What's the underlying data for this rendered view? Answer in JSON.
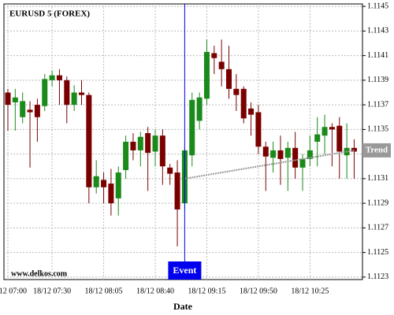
{
  "chart_data": {
    "type": "candlestick",
    "title": "EURUSD 5 (FOREX)",
    "x_label": "Date",
    "watermark": "www.delkos.com",
    "categories": [
      "18/12 07:00",
      null,
      null,
      null,
      null,
      null,
      "18/12 07:30",
      null,
      null,
      null,
      null,
      null,
      null,
      "18/12 08:05",
      null,
      null,
      null,
      null,
      null,
      null,
      "18/12 08:40",
      null,
      null,
      null,
      null,
      null,
      null,
      "18/12 09:15",
      null,
      null,
      null,
      null,
      null,
      null,
      "18/12 09:50",
      null,
      null,
      null,
      null,
      null,
      null,
      "18/12 10:25",
      null,
      null,
      null,
      null,
      null,
      null
    ],
    "open": [
      1.1138,
      1.11372,
      1.1136,
      1.11366,
      1.1137,
      1.11369,
      1.1139,
      1.11394,
      1.1139,
      1.1137,
      1.1138,
      1.11378,
      1.11303,
      1.11309,
      1.11306,
      1.11294,
      1.11317,
      1.1134,
      1.11333,
      1.11347,
      1.11332,
      1.11345,
      1.11319,
      1.11315,
      1.1129,
      1.11329,
      1.11357,
      1.11375,
      1.11412,
      1.11405,
      1.11399,
      1.11383,
      1.11383,
      1.11367,
      1.11364,
      1.11336,
      1.11327,
      1.11333,
      1.11327,
      1.11335,
      1.11319,
      1.11326,
      1.1134,
      1.11345,
      1.11352,
      1.11353,
      1.11329,
      1.11335
    ],
    "high": [
      1.11383,
      1.11383,
      1.1138,
      1.11373,
      1.11375,
      1.11395,
      1.11398,
      1.11399,
      1.11393,
      1.11386,
      1.1139,
      1.1138,
      1.11325,
      1.11315,
      1.11318,
      1.1132,
      1.11345,
      1.11347,
      1.11348,
      1.11352,
      1.1135,
      1.1135,
      1.11322,
      1.11325,
      1.11335,
      1.1138,
      1.1138,
      1.11423,
      1.11418,
      1.11423,
      1.11418,
      1.11395,
      1.11385,
      1.11372,
      1.1137,
      1.1134,
      1.1134,
      1.11345,
      1.1134,
      1.11348,
      1.1133,
      1.11345,
      1.1136,
      1.11362,
      1.11355,
      1.1136,
      1.11355,
      1.11342
    ],
    "low": [
      1.11349,
      1.11349,
      1.11355,
      1.11319,
      1.1134,
      1.11365,
      1.11385,
      1.1137,
      1.11355,
      1.11365,
      1.1137,
      1.1129,
      1.11298,
      1.1129,
      1.1128,
      1.1128,
      1.1131,
      1.11325,
      1.1132,
      1.113,
      1.1132,
      1.11305,
      1.11305,
      1.11255,
      1.11285,
      1.1132,
      1.1135,
      1.1137,
      1.11395,
      1.11385,
      1.11375,
      1.11365,
      1.11355,
      1.11345,
      1.1133,
      1.113,
      1.11315,
      1.11305,
      1.113,
      1.1131,
      1.113,
      1.1132,
      1.1132,
      1.1133,
      1.1132,
      1.1131,
      1.1131,
      1.1131
    ],
    "close": [
      1.1137,
      1.11376,
      1.11373,
      1.11364,
      1.1136,
      1.11391,
      1.11394,
      1.1139,
      1.1137,
      1.1138,
      1.11378,
      1.11303,
      1.11312,
      1.11303,
      1.1129,
      1.11315,
      1.1134,
      1.11333,
      1.11344,
      1.11331,
      1.11345,
      1.1132,
      1.11314,
      1.11285,
      1.11333,
      1.11374,
      1.11376,
      1.11413,
      1.11408,
      1.11399,
      1.11383,
      1.11378,
      1.11359,
      1.11362,
      1.11336,
      1.11328,
      1.11333,
      1.11326,
      1.11335,
      1.11319,
      1.11326,
      1.11333,
      1.11346,
      1.11352,
      1.1135,
      1.11332,
      1.11335,
      1.11332
    ],
    "up_color": "#1a8a1a",
    "down_color": "#7a0000",
    "ylim": [
      1.11228,
      1.11452
    ],
    "yticks": [
      1.1123,
      1.1125,
      1.1127,
      1.1129,
      1.1131,
      1.1133,
      1.1135,
      1.1137,
      1.1139,
      1.1141,
      1.1143,
      1.1145
    ],
    "grid": true,
    "event": {
      "label": "Event",
      "index": 24,
      "color": "#0000ee"
    },
    "trend": {
      "label": "Trend",
      "x": [
        24,
        47
      ],
      "values": [
        1.1131,
        1.11333
      ],
      "color": "#999999"
    }
  }
}
